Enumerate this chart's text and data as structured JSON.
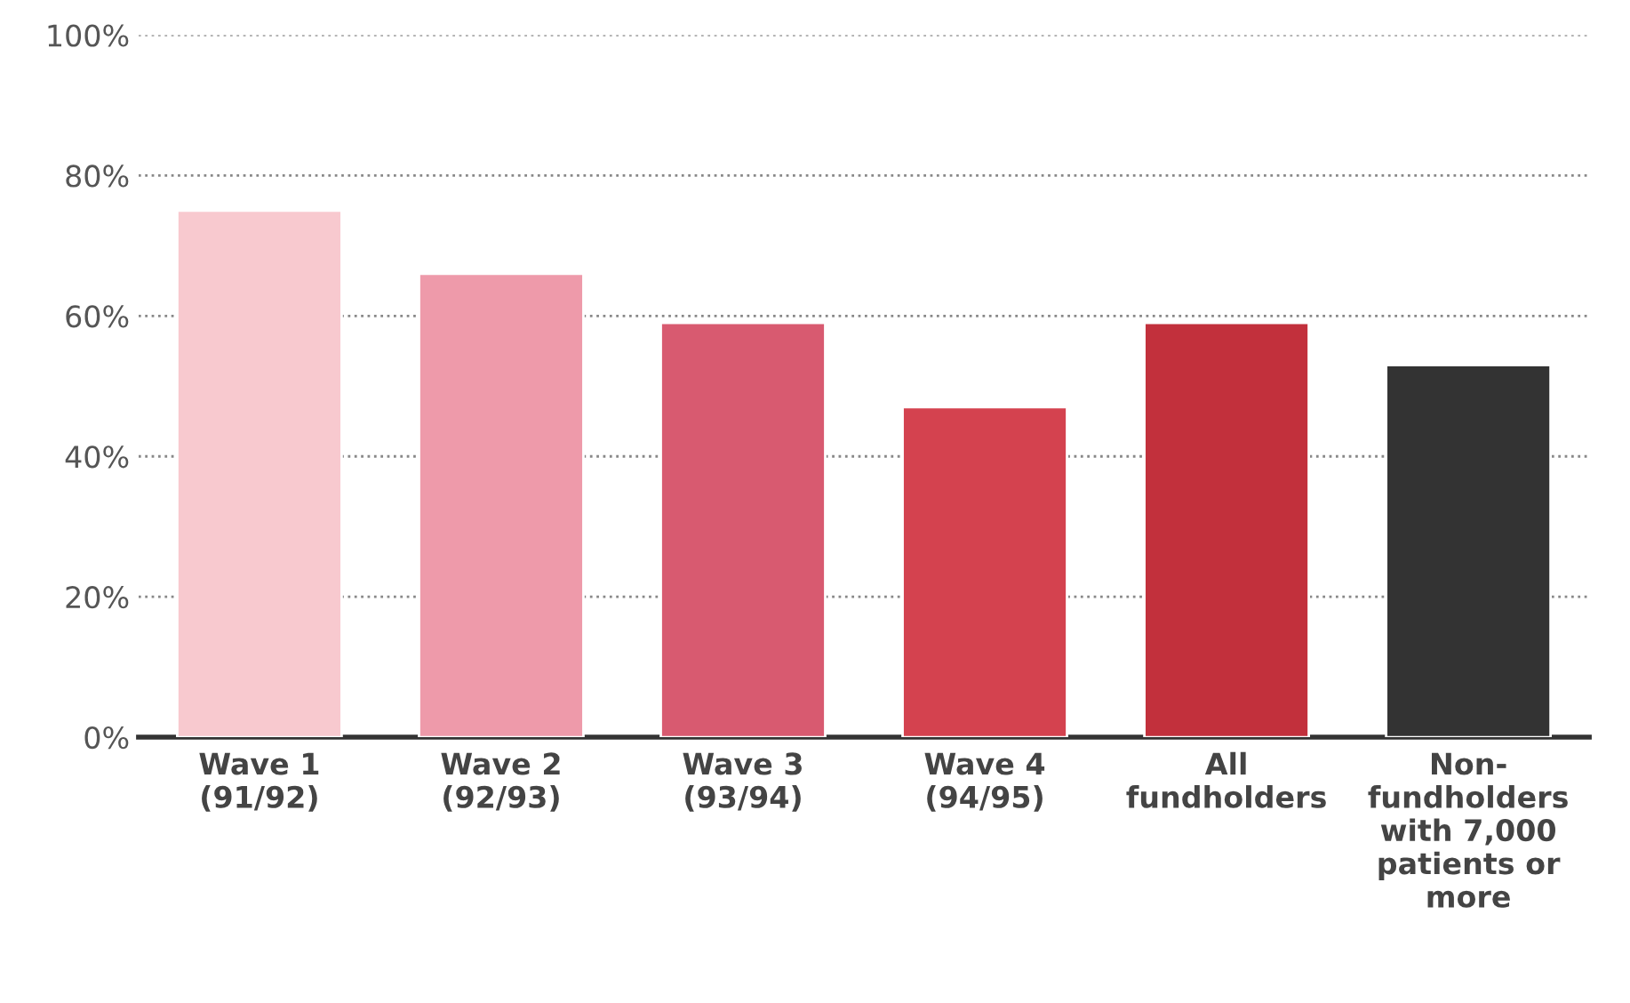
{
  "chart_data": {
    "type": "bar",
    "categories": [
      "Wave 1\n(91/92)",
      "Wave 2\n(92/93)",
      "Wave 3\n(93/94)",
      "Wave 4\n(94/95)",
      "All\nfundholders",
      "Non-\nfundholders\nwith 7,000\npatients or\nmore"
    ],
    "values": [
      75,
      66,
      59,
      47,
      59,
      53
    ],
    "colors": [
      "#f8c9cf",
      "#ee9aaa",
      "#d85a70",
      "#d4424f",
      "#c2303c",
      "#333333"
    ],
    "ylim": [
      0,
      100
    ],
    "yticks": [
      {
        "value": 0,
        "label": "0%"
      },
      {
        "value": 20,
        "label": "20%"
      },
      {
        "value": 40,
        "label": "40%"
      },
      {
        "value": 60,
        "label": "60%"
      },
      {
        "value": 80,
        "label": "80%"
      },
      {
        "value": 100,
        "label": "100%"
      }
    ],
    "grid": "y"
  }
}
